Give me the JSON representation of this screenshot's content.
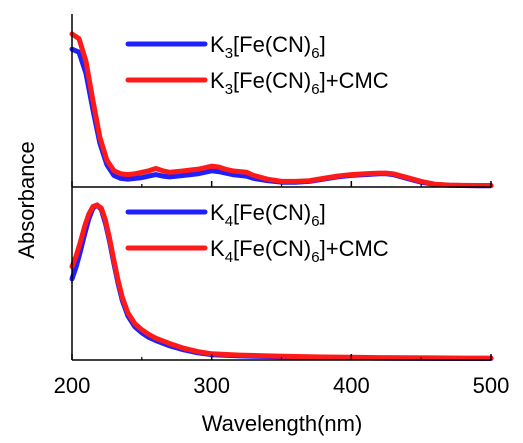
{
  "chart_data": [
    {
      "type": "line",
      "panel": "top",
      "xlim": [
        200,
        500
      ],
      "xticks": [
        200,
        300,
        400,
        500
      ],
      "xlabel": "Wavelength(nm)",
      "ylabel": "Absorbance",
      "ylim": [
        0,
        1
      ],
      "grid": false,
      "legend_position": "top-right",
      "series": [
        {
          "name_parts": [
            "K",
            "3",
            "[Fe(CN)",
            "6",
            "]"
          ],
          "name_suffix": "",
          "color": "#1f1fff",
          "x": [
            200,
            205,
            210,
            215,
            220,
            225,
            230,
            235,
            240,
            245,
            250,
            255,
            260,
            265,
            270,
            275,
            280,
            285,
            290,
            295,
            300,
            305,
            310,
            315,
            320,
            325,
            330,
            340,
            350,
            360,
            370,
            380,
            390,
            400,
            410,
            420,
            425,
            430,
            440,
            450,
            460,
            470,
            480,
            490,
            500
          ],
          "y": [
            0.9,
            0.88,
            0.74,
            0.5,
            0.28,
            0.14,
            0.07,
            0.05,
            0.045,
            0.05,
            0.055,
            0.065,
            0.075,
            0.065,
            0.06,
            0.065,
            0.07,
            0.075,
            0.08,
            0.09,
            0.1,
            0.095,
            0.085,
            0.075,
            0.07,
            0.065,
            0.05,
            0.035,
            0.025,
            0.025,
            0.03,
            0.045,
            0.06,
            0.07,
            0.075,
            0.08,
            0.08,
            0.075,
            0.05,
            0.025,
            0.01,
            0.005,
            0.003,
            0.002,
            0.002
          ]
        },
        {
          "name_parts": [
            "K",
            "3",
            "[Fe(CN)",
            "6",
            "]"
          ],
          "name_suffix": "+CMC",
          "color": "#ff1a1a",
          "x": [
            200,
            205,
            210,
            215,
            220,
            225,
            230,
            235,
            240,
            245,
            250,
            255,
            260,
            265,
            270,
            275,
            280,
            285,
            290,
            295,
            300,
            305,
            310,
            315,
            320,
            325,
            330,
            340,
            350,
            360,
            370,
            380,
            390,
            400,
            410,
            420,
            425,
            430,
            440,
            450,
            460,
            470,
            480,
            490,
            500
          ],
          "y": [
            1.0,
            0.97,
            0.82,
            0.56,
            0.32,
            0.17,
            0.1,
            0.08,
            0.075,
            0.08,
            0.09,
            0.1,
            0.115,
            0.1,
            0.09,
            0.095,
            0.1,
            0.105,
            0.11,
            0.12,
            0.13,
            0.125,
            0.11,
            0.1,
            0.095,
            0.09,
            0.07,
            0.045,
            0.03,
            0.03,
            0.035,
            0.05,
            0.065,
            0.075,
            0.08,
            0.085,
            0.085,
            0.08,
            0.055,
            0.03,
            0.012,
            0.006,
            0.004,
            0.003,
            0.003
          ]
        }
      ]
    },
    {
      "type": "line",
      "panel": "bottom",
      "xlim": [
        200,
        500
      ],
      "ylim": [
        0,
        1
      ],
      "grid": false,
      "legend_position": "top-right",
      "series": [
        {
          "name_parts": [
            "K",
            "4",
            "[Fe(CN)",
            "6",
            "]"
          ],
          "name_suffix": "",
          "color": "#1f1fff",
          "x": [
            200,
            203,
            206,
            209,
            212,
            215,
            218,
            221,
            224,
            227,
            230,
            233,
            236,
            240,
            245,
            250,
            255,
            260,
            270,
            280,
            290,
            300,
            320,
            340,
            360,
            380,
            400,
            420,
            440,
            460,
            480,
            500
          ],
          "y": [
            0.52,
            0.6,
            0.7,
            0.81,
            0.91,
            0.98,
            1.0,
            0.97,
            0.88,
            0.76,
            0.62,
            0.49,
            0.38,
            0.28,
            0.21,
            0.17,
            0.14,
            0.12,
            0.085,
            0.06,
            0.04,
            0.028,
            0.02,
            0.016,
            0.013,
            0.01,
            0.008,
            0.006,
            0.005,
            0.004,
            0.003,
            0.003
          ]
        },
        {
          "name_parts": [
            "K",
            "4",
            "[Fe(CN)",
            "6",
            "]"
          ],
          "name_suffix": "+CMC",
          "color": "#ff1a1a",
          "x": [
            200,
            203,
            206,
            209,
            212,
            215,
            218,
            221,
            224,
            227,
            230,
            233,
            236,
            240,
            245,
            250,
            255,
            260,
            270,
            280,
            290,
            300,
            320,
            340,
            360,
            380,
            400,
            420,
            440,
            460,
            480,
            500
          ],
          "y": [
            0.6,
            0.67,
            0.76,
            0.86,
            0.94,
            0.99,
            1.0,
            0.98,
            0.9,
            0.78,
            0.64,
            0.51,
            0.4,
            0.3,
            0.23,
            0.19,
            0.16,
            0.135,
            0.1,
            0.07,
            0.048,
            0.034,
            0.025,
            0.02,
            0.016,
            0.013,
            0.011,
            0.009,
            0.008,
            0.007,
            0.006,
            0.006
          ]
        }
      ]
    }
  ]
}
